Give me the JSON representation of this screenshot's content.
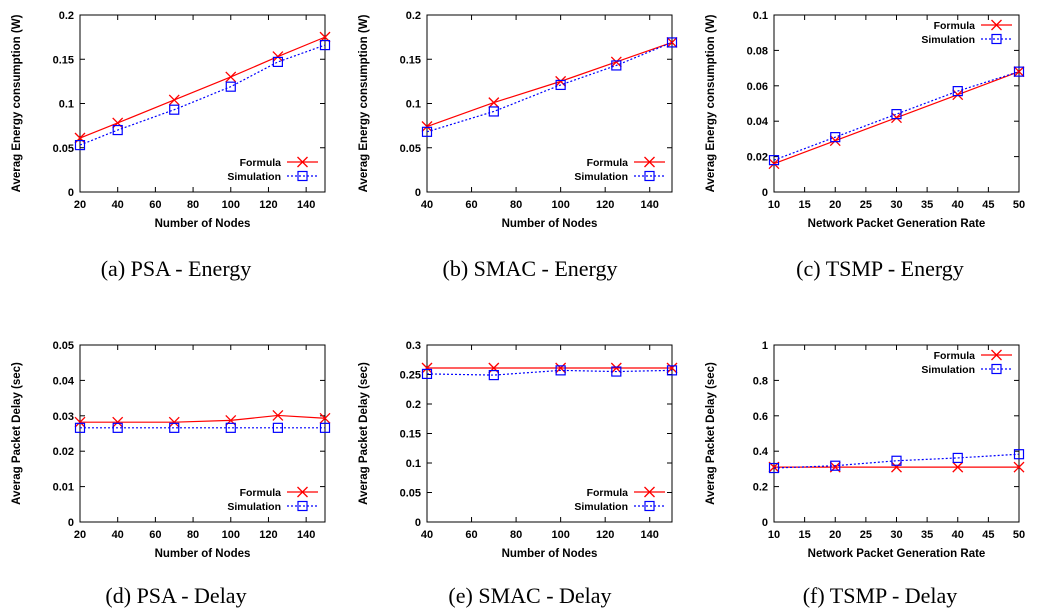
{
  "colors": {
    "formula": "#ff0000",
    "simulation": "#0000ff",
    "axis": "#000000"
  },
  "chart_data": [
    {
      "type": "line",
      "caption": "(a) PSA - Energy",
      "xlabel": "Number of Nodes",
      "ylabel": "Averag Energy consumption (W)",
      "xlim": [
        20,
        150
      ],
      "ylim": [
        0,
        0.2
      ],
      "xticks": [
        20,
        40,
        60,
        80,
        100,
        120,
        140
      ],
      "yticks": [
        0,
        0.05,
        0.1,
        0.15,
        0.2
      ],
      "ytick_labels": [
        "0",
        "0.05",
        "0.1",
        "0.15",
        "0.2"
      ],
      "legend": "bottom-right",
      "series": [
        {
          "name": "Formula",
          "marker": "x",
          "x": [
            20,
            40,
            70,
            100,
            125,
            150
          ],
          "y": [
            0.061,
            0.078,
            0.104,
            0.13,
            0.153,
            0.175
          ]
        },
        {
          "name": "Simulation",
          "marker": "square",
          "x": [
            20,
            40,
            70,
            100,
            125,
            150
          ],
          "y": [
            0.053,
            0.07,
            0.093,
            0.119,
            0.147,
            0.166
          ]
        }
      ]
    },
    {
      "type": "line",
      "caption": "(b) SMAC - Energy",
      "xlabel": "Number of Nodes",
      "ylabel": "Averag Energy consumption (W)",
      "xlim": [
        40,
        150
      ],
      "ylim": [
        0,
        0.2
      ],
      "xticks": [
        40,
        60,
        80,
        100,
        120,
        140
      ],
      "yticks": [
        0,
        0.05,
        0.1,
        0.15,
        0.2
      ],
      "ytick_labels": [
        "0",
        "0.05",
        "0.1",
        "0.15",
        "0.2"
      ],
      "legend": "bottom-right",
      "series": [
        {
          "name": "Formula",
          "marker": "x",
          "x": [
            40,
            70,
            100,
            125,
            150
          ],
          "y": [
            0.074,
            0.101,
            0.125,
            0.147,
            0.169
          ]
        },
        {
          "name": "Simulation",
          "marker": "square",
          "x": [
            40,
            70,
            100,
            125,
            150
          ],
          "y": [
            0.068,
            0.091,
            0.121,
            0.143,
            0.169
          ]
        }
      ]
    },
    {
      "type": "line",
      "caption": "(c) TSMP - Energy",
      "xlabel": "Network Packet Generation Rate",
      "ylabel": "Averag Energy consumption (W)",
      "xlim": [
        10,
        50
      ],
      "ylim": [
        0,
        0.1
      ],
      "xticks": [
        10,
        15,
        20,
        25,
        30,
        35,
        40,
        45,
        50
      ],
      "yticks": [
        0,
        0.02,
        0.04,
        0.06,
        0.08,
        0.1
      ],
      "ytick_labels": [
        "0",
        "0.02",
        "0.04",
        "0.06",
        "0.08",
        "0.1"
      ],
      "legend": "top-right",
      "series": [
        {
          "name": "Formula",
          "marker": "x",
          "x": [
            10,
            20,
            30,
            40,
            50
          ],
          "y": [
            0.016,
            0.029,
            0.042,
            0.055,
            0.068
          ]
        },
        {
          "name": "Simulation",
          "marker": "square",
          "x": [
            10,
            20,
            30,
            40,
            50
          ],
          "y": [
            0.018,
            0.031,
            0.044,
            0.057,
            0.068
          ]
        }
      ]
    },
    {
      "type": "line",
      "caption": "(d) PSA - Delay",
      "xlabel": "Number of Nodes",
      "ylabel": "Averag Packet Delay (sec)",
      "xlim": [
        20,
        150
      ],
      "ylim": [
        0,
        0.05
      ],
      "xticks": [
        20,
        40,
        60,
        80,
        100,
        120,
        140
      ],
      "yticks": [
        0,
        0.01,
        0.02,
        0.03,
        0.04,
        0.05
      ],
      "ytick_labels": [
        "0",
        "0.01",
        "0.02",
        "0.03",
        "0.04",
        "0.05"
      ],
      "legend": "bottom-right",
      "series": [
        {
          "name": "Formula",
          "marker": "x",
          "x": [
            20,
            40,
            70,
            100,
            125,
            150
          ],
          "y": [
            0.0282,
            0.0282,
            0.0282,
            0.0287,
            0.0301,
            0.0293
          ]
        },
        {
          "name": "Simulation",
          "marker": "square",
          "x": [
            20,
            40,
            70,
            100,
            125,
            150
          ],
          "y": [
            0.0266,
            0.0266,
            0.0266,
            0.0266,
            0.0266,
            0.0266
          ]
        }
      ]
    },
    {
      "type": "line",
      "caption": "(e) SMAC - Delay",
      "xlabel": "Number of Nodes",
      "ylabel": "Averag Packet Delay (sec)",
      "xlim": [
        40,
        150
      ],
      "ylim": [
        0,
        0.3
      ],
      "xticks": [
        40,
        60,
        80,
        100,
        120,
        140
      ],
      "yticks": [
        0,
        0.05,
        0.1,
        0.15,
        0.2,
        0.25,
        0.3
      ],
      "ytick_labels": [
        "0",
        "0.05",
        "0.1",
        "0.15",
        "0.2",
        "0.25",
        "0.3"
      ],
      "legend": "bottom-right",
      "series": [
        {
          "name": "Formula",
          "marker": "x",
          "x": [
            40,
            70,
            100,
            125,
            150
          ],
          "y": [
            0.261,
            0.261,
            0.261,
            0.261,
            0.261
          ]
        },
        {
          "name": "Simulation",
          "marker": "square",
          "x": [
            40,
            70,
            100,
            125,
            150
          ],
          "y": [
            0.251,
            0.249,
            0.257,
            0.255,
            0.257
          ]
        }
      ]
    },
    {
      "type": "line",
      "caption": "(f) TSMP - Delay",
      "xlabel": "Network Packet Generation Rate",
      "ylabel": "Averag Packet Delay (sec)",
      "xlim": [
        10,
        50
      ],
      "ylim": [
        0,
        1
      ],
      "xticks": [
        10,
        15,
        20,
        25,
        30,
        35,
        40,
        45,
        50
      ],
      "yticks": [
        0,
        0.2,
        0.4,
        0.6,
        0.8,
        1
      ],
      "ytick_labels": [
        "0",
        "0.2",
        "0.4",
        "0.6",
        "0.8",
        "1"
      ],
      "legend": "top-right",
      "series": [
        {
          "name": "Formula",
          "marker": "x",
          "x": [
            10,
            20,
            30,
            40,
            50
          ],
          "y": [
            0.31,
            0.31,
            0.31,
            0.31,
            0.31
          ]
        },
        {
          "name": "Simulation",
          "marker": "square",
          "x": [
            10,
            20,
            30,
            40,
            50
          ],
          "y": [
            0.305,
            0.318,
            0.346,
            0.362,
            0.383
          ]
        }
      ]
    }
  ]
}
